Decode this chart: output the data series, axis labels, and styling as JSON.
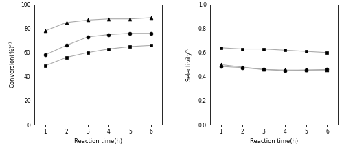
{
  "x": [
    1,
    2,
    3,
    4,
    5,
    6
  ],
  "conv_triangle": [
    78,
    85,
    87,
    88,
    88,
    89
  ],
  "conv_circle": [
    58,
    66,
    73,
    75,
    76,
    76
  ],
  "conv_square": [
    49,
    56,
    60,
    63,
    65,
    66
  ],
  "sel_square": [
    0.64,
    0.63,
    0.63,
    0.62,
    0.61,
    0.6
  ],
  "sel_triangle": [
    0.5,
    0.48,
    0.46,
    0.455,
    0.455,
    0.455
  ],
  "sel_circle": [
    0.485,
    0.475,
    0.46,
    0.45,
    0.455,
    0.46
  ],
  "conv_ylabel": "Conversion(%)$^{a)}$",
  "sel_ylabel": "Selectivity$^{b)}$",
  "xlabel": "Reaction time(h)",
  "conv_ylim": [
    0,
    100
  ],
  "sel_ylim": [
    0.0,
    1.0
  ],
  "conv_yticks": [
    0,
    20,
    40,
    60,
    80,
    100
  ],
  "sel_yticks": [
    0.0,
    0.2,
    0.4,
    0.6,
    0.8,
    1.0
  ],
  "xticks": [
    1,
    2,
    3,
    4,
    5,
    6
  ],
  "line_color": "#aaaaaa",
  "marker_color": "black",
  "marker_size": 3.5,
  "line_width": 0.8,
  "fontsize_label": 6,
  "fontsize_tick": 5.5
}
